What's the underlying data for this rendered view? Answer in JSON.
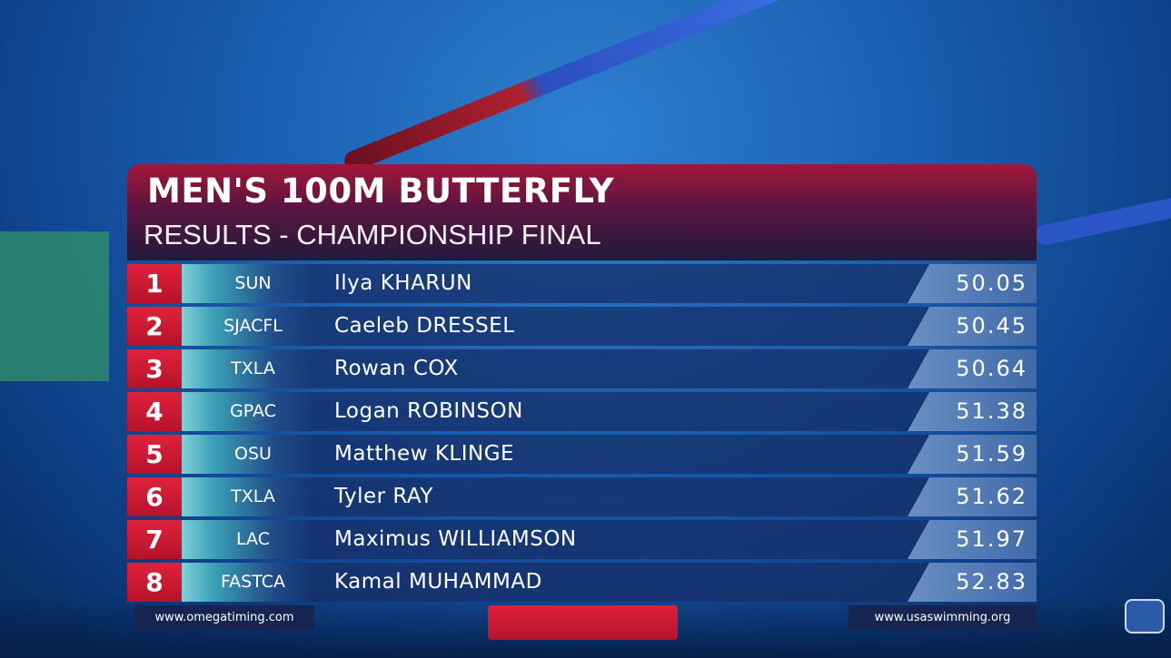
{
  "header": {
    "title": "MEN'S 100M BUTTERFLY",
    "subtitle": "RESULTS - CHAMPIONSHIP FINAL"
  },
  "rows": [
    {
      "rank": "1",
      "team": "SUN",
      "name": "Ilya KHARUN",
      "time": "50.05"
    },
    {
      "rank": "2",
      "team": "SJACFL",
      "name": "Caeleb DRESSEL",
      "time": "50.45"
    },
    {
      "rank": "3",
      "team": "TXLA",
      "name": "Rowan COX",
      "time": "50.64"
    },
    {
      "rank": "4",
      "team": "GPAC",
      "name": "Logan ROBINSON",
      "time": "51.38"
    },
    {
      "rank": "5",
      "team": "OSU",
      "name": "Matthew KLINGE",
      "time": "51.59"
    },
    {
      "rank": "6",
      "team": "TXLA",
      "name": "Tyler RAY",
      "time": "51.62"
    },
    {
      "rank": "7",
      "team": "LAC",
      "name": "Maximus WILLIAMSON",
      "time": "51.97"
    },
    {
      "rank": "8",
      "team": "FASTCA",
      "name": "Kamal MUHAMMAD",
      "time": "52.83"
    }
  ],
  "footer": {
    "left": "www.omegatiming.com",
    "right": "www.usaswimming.org"
  }
}
